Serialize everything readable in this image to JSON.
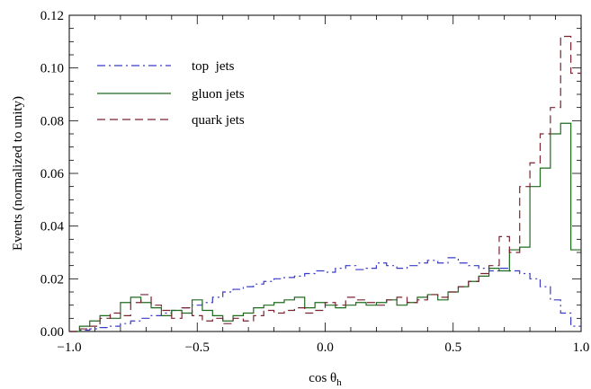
{
  "chart_data": {
    "type": "line",
    "step": true,
    "xlabel": "cos θ",
    "xlabel_subscript": "h",
    "ylabel": "Events (normalized to unity)",
    "xlim": [
      -1.0,
      1.0
    ],
    "ylim": [
      0.0,
      0.12
    ],
    "xticks": [
      -1.0,
      -0.5,
      0.0,
      0.5,
      1.0
    ],
    "xtick_labels": [
      "−1.0",
      "−0.5",
      "0.0",
      "0.5",
      "1.0"
    ],
    "yticks": [
      0.0,
      0.02,
      0.04,
      0.06,
      0.08,
      0.1,
      0.12
    ],
    "ytick_labels": [
      "0.00",
      "0.02",
      "0.04",
      "0.06",
      "0.08",
      "0.10",
      "0.12"
    ],
    "legend_position": "top-left",
    "bin_edges": [
      -1.0,
      -0.96,
      -0.92,
      -0.88,
      -0.84,
      -0.8,
      -0.76,
      -0.72,
      -0.68,
      -0.64,
      -0.6,
      -0.56,
      -0.52,
      -0.48,
      -0.44,
      -0.4,
      -0.36,
      -0.32,
      -0.28,
      -0.24,
      -0.2,
      -0.16,
      -0.12,
      -0.08,
      -0.04,
      0.0,
      0.04,
      0.08,
      0.12,
      0.16,
      0.2,
      0.24,
      0.28,
      0.32,
      0.36,
      0.4,
      0.44,
      0.48,
      0.52,
      0.56,
      0.6,
      0.64,
      0.68,
      0.72,
      0.76,
      0.8,
      0.84,
      0.88,
      0.92,
      0.96,
      1.0
    ],
    "series": [
      {
        "name": "top  jets",
        "color": "#3a3ac8",
        "dash": "dashdot",
        "values": [
          0.0,
          0.0005,
          0.001,
          0.0015,
          0.002,
          0.003,
          0.004,
          0.005,
          0.006,
          0.007,
          0.008,
          0.009,
          0.01,
          0.011,
          0.013,
          0.015,
          0.016,
          0.017,
          0.018,
          0.019,
          0.02,
          0.0205,
          0.021,
          0.022,
          0.023,
          0.0225,
          0.024,
          0.025,
          0.0235,
          0.024,
          0.026,
          0.025,
          0.024,
          0.025,
          0.026,
          0.027,
          0.026,
          0.028,
          0.026,
          0.025,
          0.024,
          0.023,
          0.024,
          0.023,
          0.022,
          0.02,
          0.017,
          0.012,
          0.007,
          0.002
        ]
      },
      {
        "name": "gluon jets",
        "color": "#1e6b1e",
        "dash": "solid",
        "values": [
          0.0,
          0.002,
          0.004,
          0.006,
          0.005,
          0.011,
          0.013,
          0.011,
          0.009,
          0.006,
          0.008,
          0.007,
          0.012,
          0.008,
          0.006,
          0.004,
          0.006,
          0.007,
          0.009,
          0.01,
          0.011,
          0.012,
          0.013,
          0.009,
          0.011,
          0.01,
          0.009,
          0.01,
          0.011,
          0.01,
          0.011,
          0.012,
          0.01,
          0.011,
          0.013,
          0.014,
          0.012,
          0.015,
          0.017,
          0.019,
          0.021,
          0.024,
          0.023,
          0.031,
          0.032,
          0.055,
          0.062,
          0.075,
          0.079,
          0.031
        ]
      },
      {
        "name": "quark jets",
        "color": "#7a2430",
        "dash": "dashed",
        "values": [
          0.0,
          0.001,
          0.002,
          0.005,
          0.007,
          0.006,
          0.011,
          0.014,
          0.01,
          0.008,
          0.005,
          0.009,
          0.006,
          0.004,
          0.005,
          0.003,
          0.005,
          0.004,
          0.006,
          0.008,
          0.007,
          0.008,
          0.009,
          0.007,
          0.008,
          0.011,
          0.01,
          0.013,
          0.012,
          0.011,
          0.01,
          0.012,
          0.013,
          0.011,
          0.012,
          0.014,
          0.013,
          0.015,
          0.017,
          0.019,
          0.022,
          0.025,
          0.036,
          0.03,
          0.055,
          0.064,
          0.075,
          0.085,
          0.112,
          0.098
        ]
      }
    ]
  }
}
